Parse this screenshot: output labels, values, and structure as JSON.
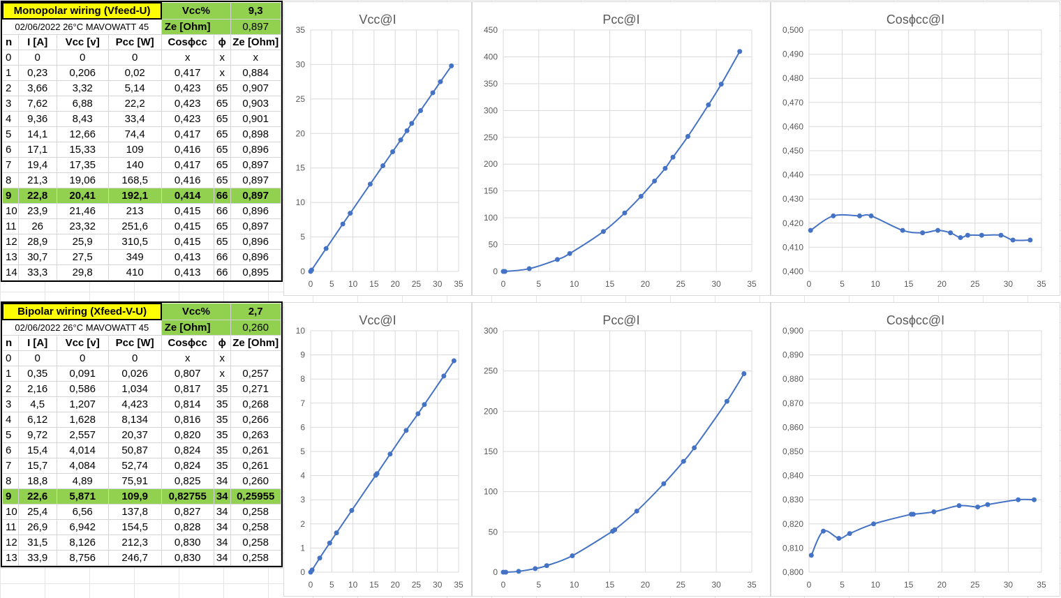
{
  "tables": [
    {
      "title": "Monopolar wiring (Vfeed-U)",
      "subtitle": "02/06/2022 26°C MAVOWATT 45",
      "vcc_label": "Vcc%",
      "vcc_value": "9,3",
      "ze_label": "Ze [Ohm]",
      "ze_value": "0,897",
      "headers": [
        "n",
        "I [A]",
        "Vcc [v]",
        "Pcc [W]",
        "Cosϕcc",
        "ϕ",
        "Ze [Ohm]"
      ],
      "highlight_row": 9,
      "rows": [
        [
          "0",
          "0",
          "0",
          "0",
          "x",
          "x",
          "x"
        ],
        [
          "1",
          "0,23",
          "0,206",
          "0,02",
          "0,417",
          "x",
          "0,884"
        ],
        [
          "2",
          "3,66",
          "3,32",
          "5,14",
          "0,423",
          "65",
          "0,907"
        ],
        [
          "3",
          "7,62",
          "6,88",
          "22,2",
          "0,423",
          "65",
          "0,903"
        ],
        [
          "4",
          "9,36",
          "8,43",
          "33,4",
          "0,423",
          "65",
          "0,901"
        ],
        [
          "5",
          "14,1",
          "12,66",
          "74,4",
          "0,417",
          "65",
          "0,898"
        ],
        [
          "6",
          "17,1",
          "15,33",
          "109",
          "0,416",
          "65",
          "0,896"
        ],
        [
          "7",
          "19,4",
          "17,35",
          "140",
          "0,417",
          "65",
          "0,897"
        ],
        [
          "8",
          "21,3",
          "19,06",
          "168,5",
          "0,416",
          "65",
          "0,897"
        ],
        [
          "9",
          "22,8",
          "20,41",
          "192,1",
          "0,414",
          "66",
          "0,897"
        ],
        [
          "10",
          "23,9",
          "21,46",
          "213",
          "0,415",
          "66",
          "0,896"
        ],
        [
          "11",
          "26",
          "23,32",
          "251,6",
          "0,415",
          "65",
          "0,897"
        ],
        [
          "12",
          "28,9",
          "25,9",
          "310,5",
          "0,415",
          "65",
          "0,896"
        ],
        [
          "13",
          "30,7",
          "27,5",
          "349",
          "0,413",
          "66",
          "0,896"
        ],
        [
          "14",
          "33,3",
          "29,8",
          "410",
          "0,413",
          "66",
          "0,895"
        ]
      ]
    },
    {
      "title": "Bipolar wiring  (Xfeed-V-U)",
      "subtitle": "02/06/2022 26°C MAVOWATT 45",
      "vcc_label": "Vcc%",
      "vcc_value": "2,7",
      "ze_label": "Ze [Ohm]",
      "ze_value": "0,260",
      "headers": [
        "n",
        "I [A]",
        "Vcc [v]",
        "Pcc [W]",
        "Cosϕcc",
        "ϕ",
        "Ze [Ohm]"
      ],
      "highlight_row": 9,
      "rows": [
        [
          "0",
          "0",
          "0",
          "0",
          "x",
          "x",
          ""
        ],
        [
          "1",
          "0,35",
          "0,091",
          "0,026",
          "0,807",
          "x",
          "0,257"
        ],
        [
          "2",
          "2,16",
          "0,586",
          "1,034",
          "0,817",
          "35",
          "0,271"
        ],
        [
          "3",
          "4,5",
          "1,207",
          "4,423",
          "0,814",
          "35",
          "0,268"
        ],
        [
          "4",
          "6,12",
          "1,628",
          "8,134",
          "0,816",
          "35",
          "0,266"
        ],
        [
          "5",
          "9,72",
          "2,557",
          "20,37",
          "0,820",
          "35",
          "0,263"
        ],
        [
          "6",
          "15,4",
          "4,014",
          "50,87",
          "0,824",
          "35",
          "0,261"
        ],
        [
          "7",
          "15,7",
          "4,084",
          "52,74",
          "0,824",
          "35",
          "0,261"
        ],
        [
          "8",
          "18,8",
          "4,89",
          "75,91",
          "0,825",
          "34",
          "0,260"
        ],
        [
          "9",
          "22,6",
          "5,871",
          "109,9",
          "0,82755",
          "34",
          "0,25955"
        ],
        [
          "10",
          "25,4",
          "6,56",
          "137,8",
          "0,827",
          "34",
          "0,258"
        ],
        [
          "11",
          "26,9",
          "6,942",
          "154,5",
          "0,828",
          "34",
          "0,258"
        ],
        [
          "12",
          "31,5",
          "8,126",
          "212,3",
          "0,830",
          "34",
          "0,258"
        ],
        [
          "13",
          "33,9",
          "8,756",
          "246,7",
          "0,830",
          "34",
          "0,258"
        ]
      ]
    }
  ],
  "series_color": "#4472c4",
  "chart_data": [
    {
      "type": "scatter",
      "title": "Vcc@I",
      "xlim": [
        0,
        35
      ],
      "xticks": [
        0,
        5,
        10,
        15,
        20,
        25,
        30,
        35
      ],
      "ylim": [
        0,
        35
      ],
      "yticks": [
        0,
        5,
        10,
        15,
        20,
        25,
        30,
        35
      ],
      "ytick_labels": [
        "0",
        "5",
        "10",
        "15",
        "20",
        "25",
        "30",
        "35"
      ],
      "x": [
        0,
        0.23,
        3.66,
        7.62,
        9.36,
        14.1,
        17.1,
        19.4,
        21.3,
        22.8,
        23.9,
        26,
        28.9,
        30.7,
        33.3
      ],
      "y": [
        0,
        0.206,
        3.32,
        6.88,
        8.43,
        12.66,
        15.33,
        17.35,
        19.06,
        20.41,
        21.46,
        23.32,
        25.9,
        27.5,
        29.8
      ],
      "grid": true
    },
    {
      "type": "scatter",
      "title": "Pcc@I",
      "xlim": [
        0,
        35
      ],
      "xticks": [
        0,
        5,
        10,
        15,
        20,
        25,
        30,
        35
      ],
      "ylim": [
        0,
        450
      ],
      "yticks": [
        0,
        50,
        100,
        150,
        200,
        250,
        300,
        350,
        400,
        450
      ],
      "ytick_labels": [
        "0",
        "50",
        "100",
        "150",
        "200",
        "250",
        "300",
        "350",
        "400",
        "450"
      ],
      "x": [
        0,
        0.23,
        3.66,
        7.62,
        9.36,
        14.1,
        17.1,
        19.4,
        21.3,
        22.8,
        23.9,
        26,
        28.9,
        30.7,
        33.3
      ],
      "y": [
        0,
        0.02,
        5.14,
        22.2,
        33.4,
        74.4,
        109,
        140,
        168.5,
        192.1,
        213,
        251.6,
        310.5,
        349,
        410
      ],
      "grid": true
    },
    {
      "type": "scatter",
      "title": "Cosϕcc@I",
      "xlim": [
        0,
        35
      ],
      "xticks": [
        0,
        5,
        10,
        15,
        20,
        25,
        30,
        35
      ],
      "ylim": [
        0.4,
        0.5
      ],
      "yticks": [
        0.4,
        0.41,
        0.42,
        0.43,
        0.44,
        0.45,
        0.46,
        0.47,
        0.48,
        0.49,
        0.5
      ],
      "ytick_labels": [
        "0,400",
        "0,410",
        "0,420",
        "0,430",
        "0,440",
        "0,450",
        "0,460",
        "0,470",
        "0,480",
        "0,490",
        "0,500"
      ],
      "x": [
        0.23,
        3.66,
        7.62,
        9.36,
        14.1,
        17.1,
        19.4,
        21.3,
        22.8,
        23.9,
        26,
        28.9,
        30.7,
        33.3
      ],
      "y": [
        0.417,
        0.423,
        0.423,
        0.423,
        0.417,
        0.416,
        0.417,
        0.416,
        0.414,
        0.415,
        0.415,
        0.415,
        0.413,
        0.413
      ],
      "grid": true
    },
    {
      "type": "scatter",
      "title": "Vcc@I",
      "xlim": [
        0,
        35
      ],
      "xticks": [
        0,
        5,
        10,
        15,
        20,
        25,
        30,
        35
      ],
      "ylim": [
        0,
        10
      ],
      "yticks": [
        0,
        1,
        2,
        3,
        4,
        5,
        6,
        7,
        8,
        9,
        10
      ],
      "ytick_labels": [
        "0",
        "1",
        "2",
        "3",
        "4",
        "5",
        "6",
        "7",
        "8",
        "9",
        "10"
      ],
      "x": [
        0,
        0.35,
        2.16,
        4.5,
        6.12,
        9.72,
        15.4,
        15.7,
        18.8,
        22.6,
        25.4,
        26.9,
        31.5,
        33.9
      ],
      "y": [
        0,
        0.091,
        0.586,
        1.207,
        1.628,
        2.557,
        4.014,
        4.084,
        4.89,
        5.871,
        6.56,
        6.942,
        8.126,
        8.756
      ],
      "grid": true
    },
    {
      "type": "scatter",
      "title": "Pcc@I",
      "xlim": [
        0,
        35
      ],
      "xticks": [
        0,
        5,
        10,
        15,
        20,
        25,
        30,
        35
      ],
      "ylim": [
        0,
        300
      ],
      "yticks": [
        0,
        50,
        100,
        150,
        200,
        250,
        300
      ],
      "ytick_labels": [
        "0",
        "50",
        "100",
        "150",
        "200",
        "250",
        "300"
      ],
      "x": [
        0,
        0.35,
        2.16,
        4.5,
        6.12,
        9.72,
        15.4,
        15.7,
        18.8,
        22.6,
        25.4,
        26.9,
        31.5,
        33.9
      ],
      "y": [
        0,
        0.026,
        1.034,
        4.423,
        8.134,
        20.37,
        50.87,
        52.74,
        75.91,
        109.9,
        137.8,
        154.5,
        212.3,
        246.7
      ],
      "grid": true
    },
    {
      "type": "scatter",
      "title": "Cosϕcc@I",
      "xlim": [
        0,
        35
      ],
      "xticks": [
        0,
        5,
        10,
        15,
        20,
        25,
        30,
        35
      ],
      "ylim": [
        0.8,
        0.9
      ],
      "yticks": [
        0.8,
        0.81,
        0.82,
        0.83,
        0.84,
        0.85,
        0.86,
        0.87,
        0.88,
        0.89,
        0.9
      ],
      "ytick_labels": [
        "0,800",
        "0,810",
        "0,820",
        "0,830",
        "0,840",
        "0,850",
        "0,860",
        "0,870",
        "0,880",
        "0,890",
        "0,900"
      ],
      "x": [
        0.35,
        2.16,
        4.5,
        6.12,
        9.72,
        15.4,
        15.7,
        18.8,
        22.6,
        25.4,
        26.9,
        31.5,
        33.9
      ],
      "y": [
        0.807,
        0.817,
        0.814,
        0.816,
        0.82,
        0.824,
        0.824,
        0.825,
        0.82755,
        0.827,
        0.828,
        0.83,
        0.83
      ],
      "grid": true
    }
  ]
}
